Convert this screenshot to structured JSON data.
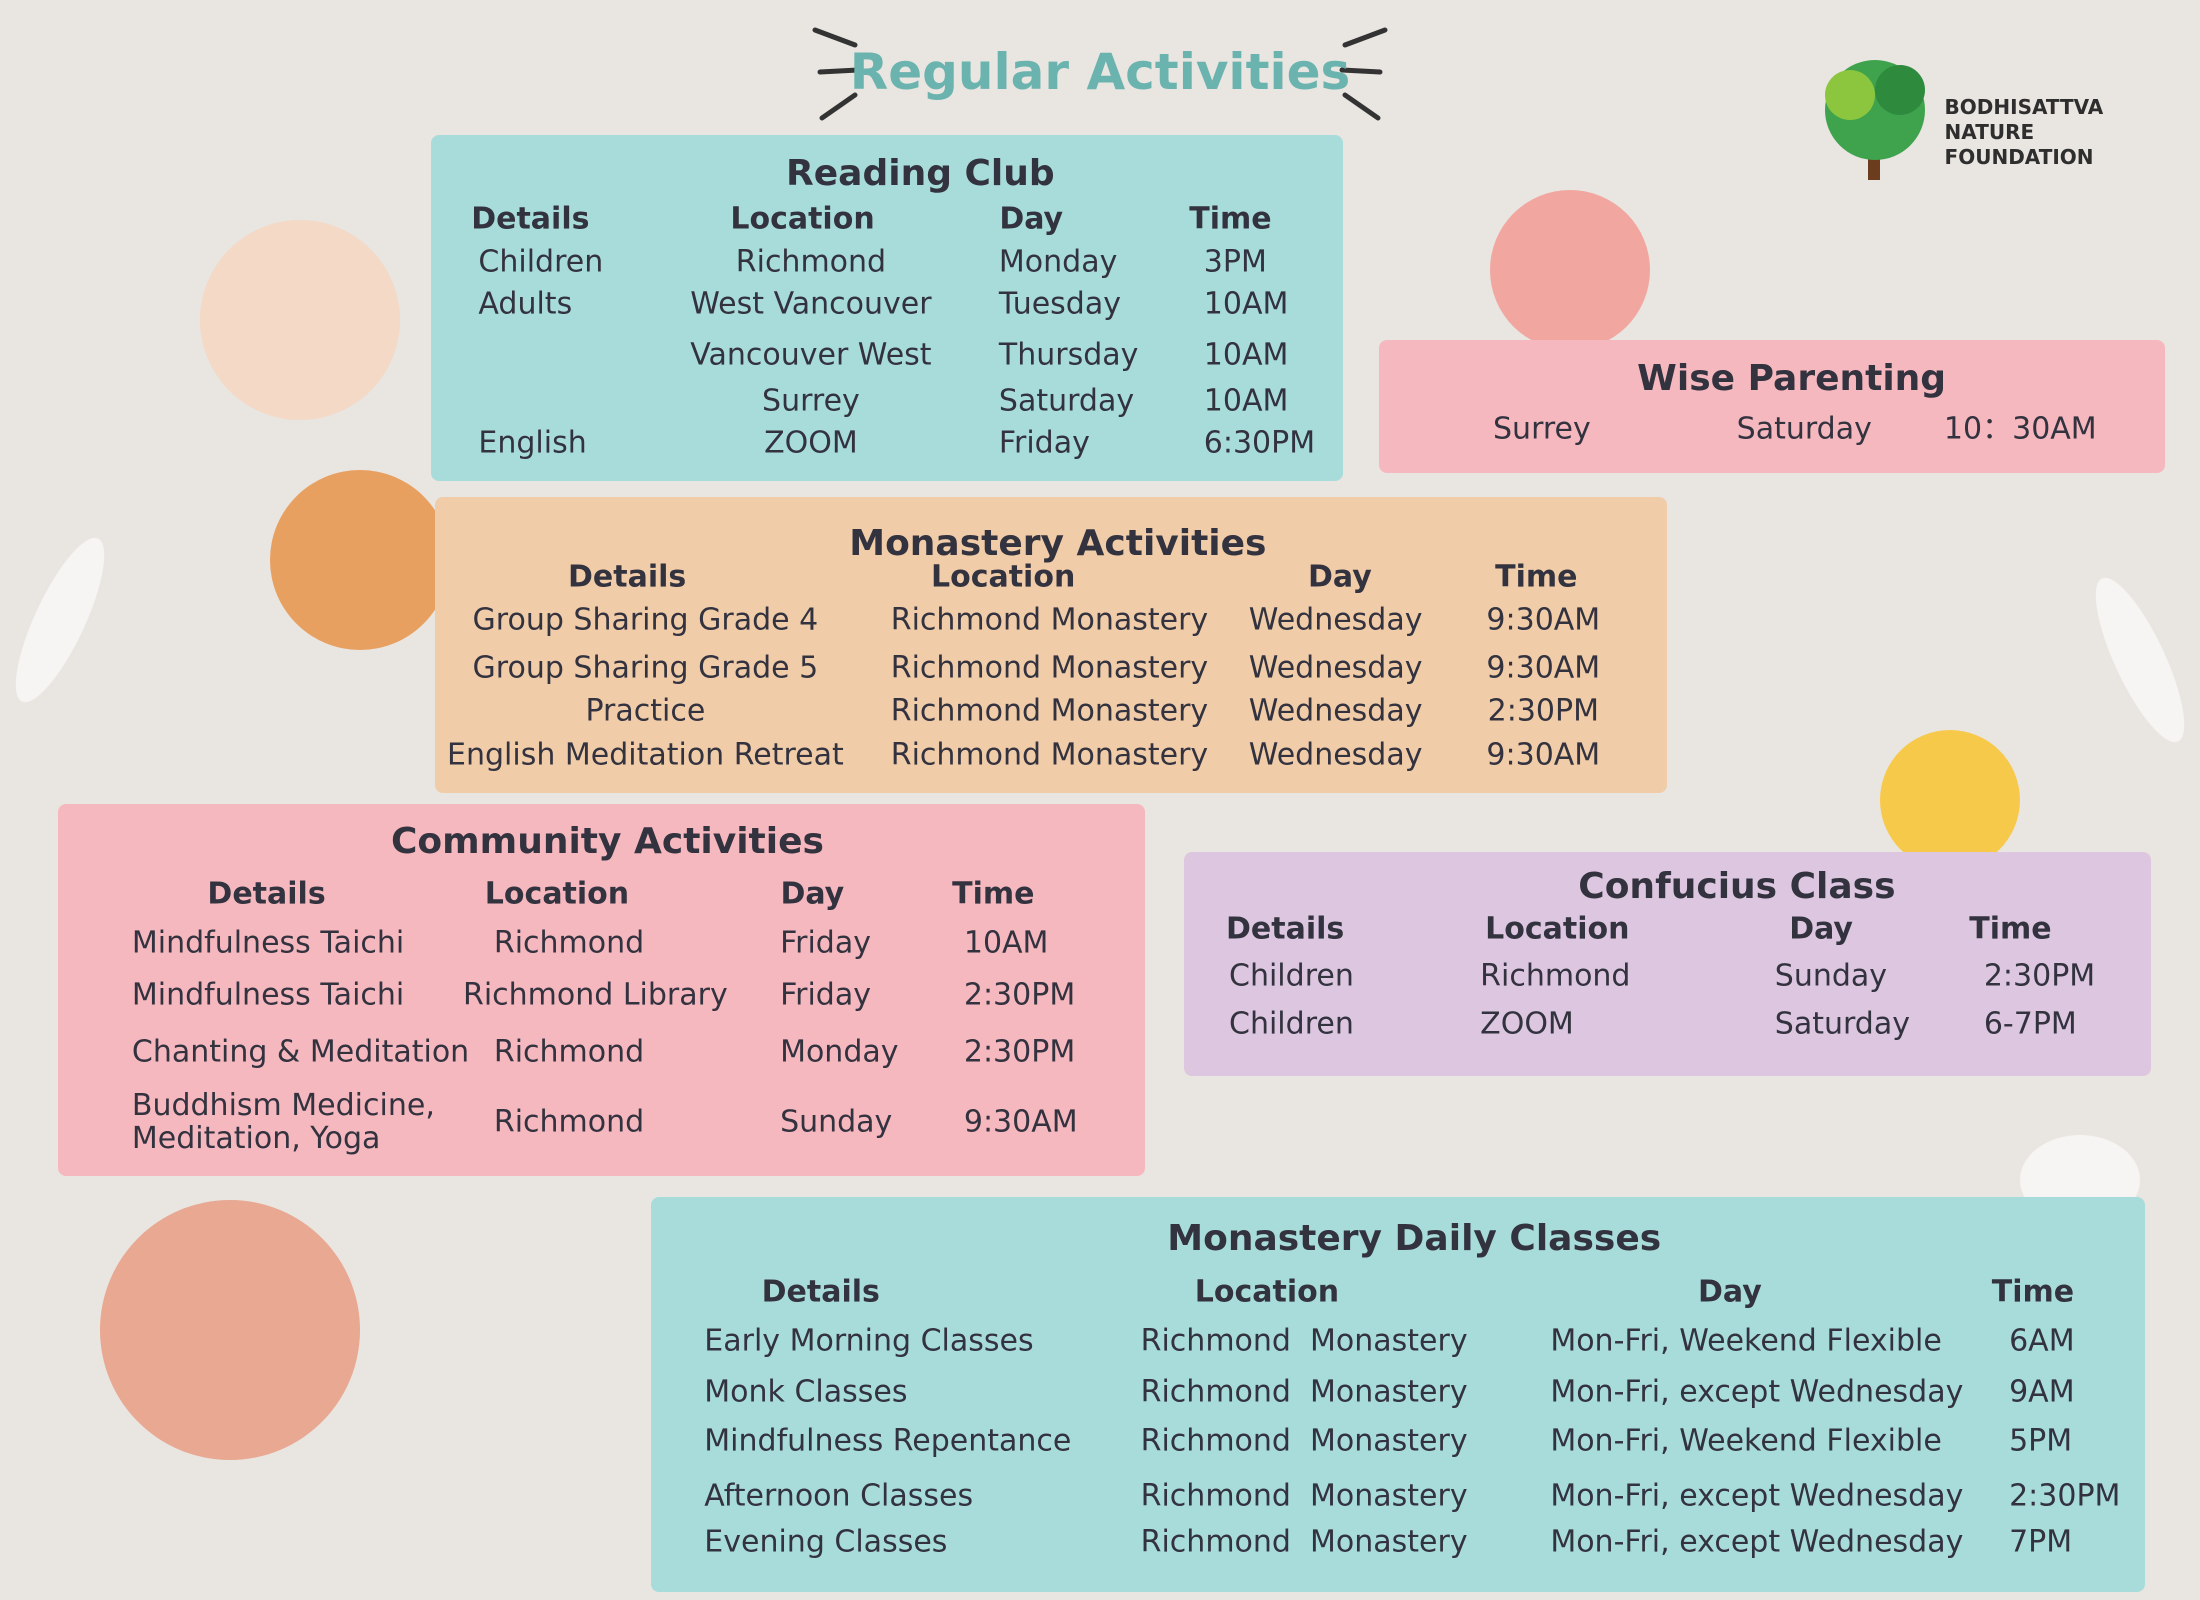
{
  "title": "Regular Activities",
  "logo": {
    "lines": [
      "BODHISATTVA",
      "NATURE",
      "FOUNDATION"
    ]
  },
  "sections": [
    {
      "title": "Reading Club",
      "headers": [
        "Details",
        "Location",
        "Day",
        "Time"
      ],
      "rows": [
        [
          "Children",
          "Richmond",
          "Monday",
          "3PM"
        ],
        [
          "Adults",
          "West Vancouver",
          "Tuesday",
          "10AM"
        ],
        [
          null,
          "Vancouver West",
          "Thursday",
          "10AM"
        ],
        [
          null,
          "Surrey",
          "Saturday",
          "10AM"
        ],
        [
          "English",
          "ZOOM",
          "Friday",
          "6:30PM"
        ]
      ]
    },
    {
      "title": "Wise Parenting",
      "rows": [
        [
          "Surrey",
          "Saturday",
          "10：30AM"
        ]
      ]
    },
    {
      "title": "Monastery Activities",
      "headers": [
        "Details",
        "Location",
        "Day",
        "Time"
      ],
      "rows": [
        [
          "Group Sharing Grade 4",
          "Richmond Monastery",
          "Wednesday",
          "9:30AM"
        ],
        [
          "Group Sharing Grade 5",
          "Richmond Monastery",
          "Wednesday",
          "9:30AM"
        ],
        [
          "Practice",
          "Richmond Monastery",
          "Wednesday",
          "2:30PM"
        ],
        [
          "English Meditation Retreat",
          "Richmond Monastery",
          "Wednesday",
          "9:30AM"
        ]
      ]
    },
    {
      "title": "Community Activities",
      "headers": [
        "Details",
        "Location",
        "Day",
        "Time"
      ],
      "rows": [
        [
          "Mindfulness Taichi",
          "Richmond",
          "Friday",
          "10AM"
        ],
        [
          "Mindfulness Taichi",
          "Richmond Library",
          "Friday",
          "2:30PM"
        ],
        [
          "Chanting & Meditation",
          "Richmond",
          "Monday",
          "2:30PM"
        ],
        [
          "Buddhism Medicine,\nMeditation, Yoga",
          "Richmond",
          "Sunday",
          "9:30AM"
        ]
      ]
    },
    {
      "title": "Confucius Class",
      "headers": [
        "Details",
        "Location",
        "Day",
        "Time"
      ],
      "rows": [
        [
          "Children",
          "Richmond",
          "Sunday",
          "2:30PM"
        ],
        [
          "Children",
          "ZOOM",
          "Saturday",
          "6-7PM"
        ]
      ]
    },
    {
      "title": "Monastery Daily Classes",
      "headers": [
        "Details",
        "Location",
        "Day",
        "Time"
      ],
      "rows": [
        [
          "Early Morning Classes",
          "Richmond  Monastery",
          "Mon-Fri, Weekend Flexible",
          "6AM"
        ],
        [
          "Monk Classes",
          "Richmond  Monastery",
          "Mon-Fri, except Wednesday",
          "9AM"
        ],
        [
          "Mindfulness Repentance",
          "Richmond  Monastery",
          "Mon-Fri, Weekend Flexible",
          "5PM"
        ],
        [
          "Afternoon Classes",
          "Richmond  Monastery",
          "Mon-Fri, except Wednesday",
          "2:30PM"
        ],
        [
          "Evening Classes",
          "Richmond  Monastery",
          "Mon-Fri, except Wednesday",
          "7PM"
        ]
      ]
    }
  ]
}
